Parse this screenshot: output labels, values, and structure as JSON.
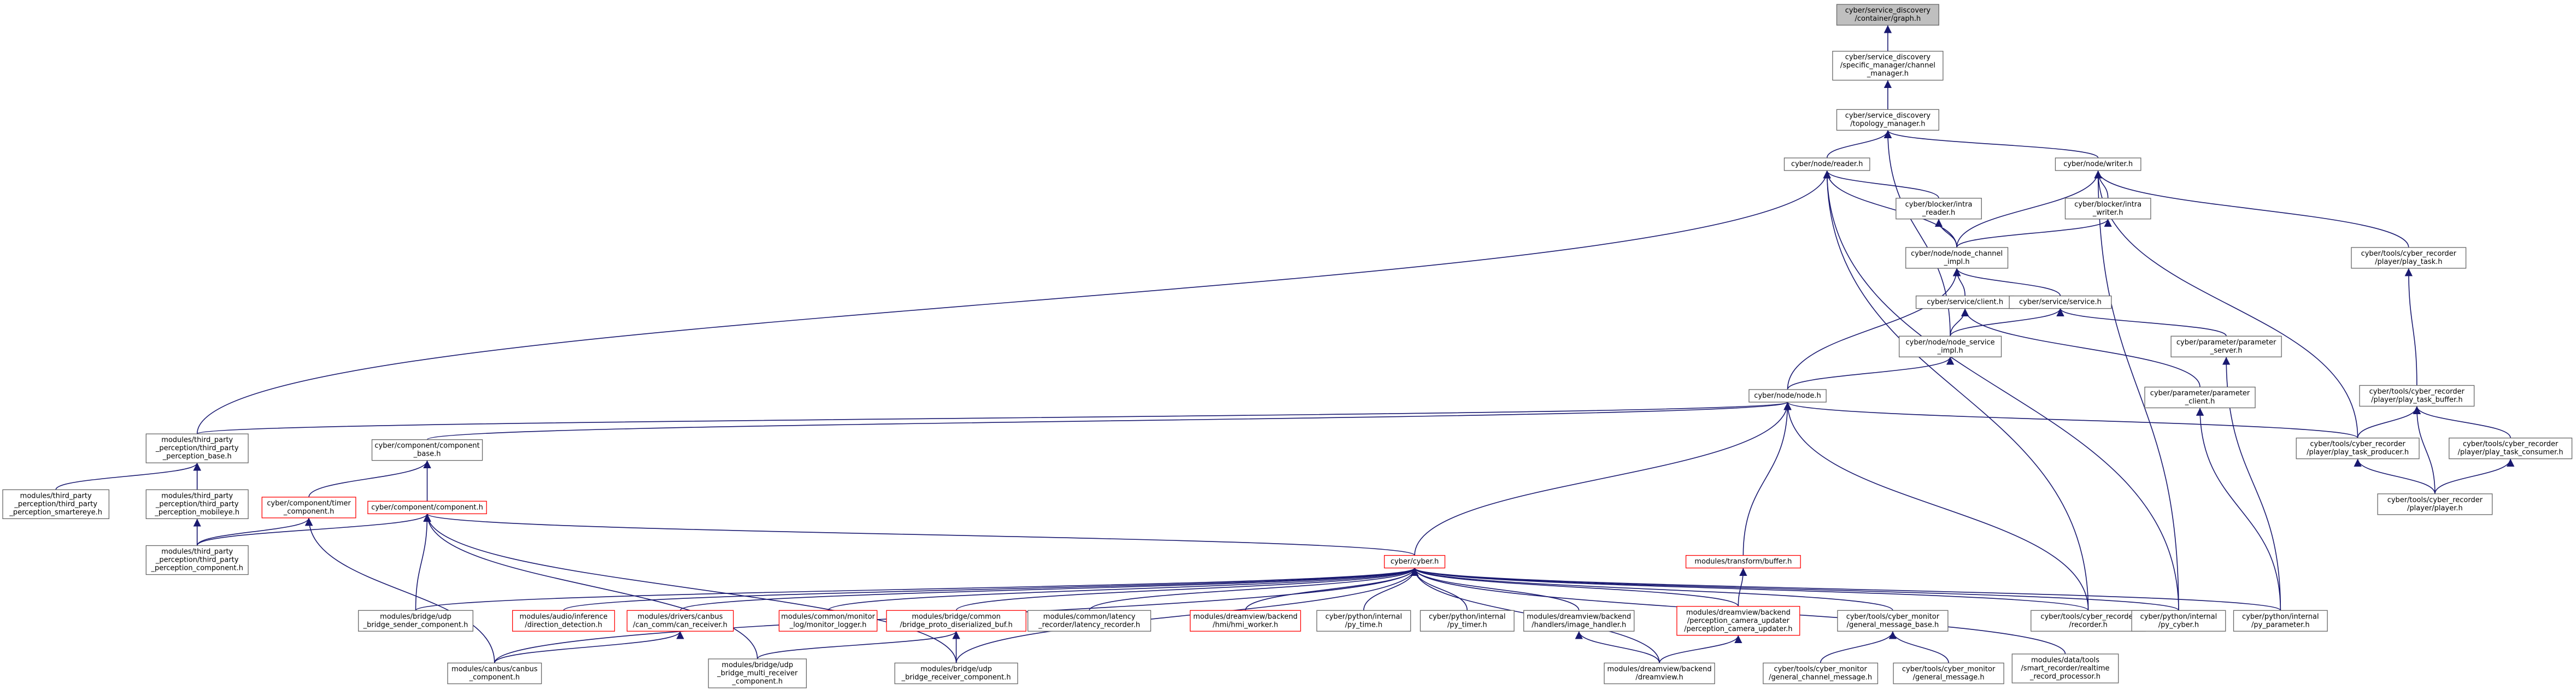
{
  "nodes": [
    {
      "lines": [
        "cyber/service_discovery",
        "/container/graph.h"
      ],
      "color": "#bfbfbf"
    },
    {
      "lines": [
        "cyber/service_discovery",
        "/specific_manager/channel",
        "_manager.h"
      ]
    },
    {
      "lines": [
        "cyber/service_discovery",
        "/topology_manager.h"
      ]
    },
    {
      "lines": [
        "cyber/node/reader.h"
      ]
    },
    {
      "lines": [
        "cyber/node/writer.h"
      ]
    },
    {
      "lines": [
        "cyber/blocker/intra",
        "_reader.h"
      ]
    },
    {
      "lines": [
        "cyber/blocker/intra",
        "_writer.h"
      ]
    },
    {
      "lines": [
        "cyber/tools/cyber_recorder",
        "/player/play_task.h"
      ]
    },
    {
      "lines": [
        "cyber/node/node_channel",
        "_impl.h"
      ]
    },
    {
      "lines": [
        "cyber/service/client.h"
      ]
    },
    {
      "lines": [
        "cyber/service/service.h"
      ]
    },
    {
      "lines": [
        "cyber/node/node_service",
        "_impl.h"
      ]
    },
    {
      "lines": [
        "cyber/parameter/parameter",
        "_server.h"
      ]
    },
    {
      "lines": [
        "cyber/node/node.h"
      ]
    },
    {
      "lines": [
        "cyber/parameter/parameter",
        "_client.h"
      ]
    },
    {
      "lines": [
        "cyber/tools/cyber_recorder",
        "/player/play_task_buffer.h"
      ]
    },
    {
      "lines": [
        "modules/third_party",
        "_perception/third_party",
        "_perception_base.h"
      ]
    },
    {
      "lines": [
        "cyber/component/component",
        "_base.h"
      ]
    },
    {
      "lines": [
        "cyber/tools/cyber_recorder",
        "/player/play_task_producer.h"
      ]
    },
    {
      "lines": [
        "cyber/tools/cyber_recorder",
        "/player/play_task_consumer.h"
      ]
    },
    {
      "lines": [
        "modules/third_party",
        "_perception/third_party",
        "_perception_smartereye.h"
      ]
    },
    {
      "lines": [
        "modules/third_party",
        "_perception/third_party",
        "_perception_mobileye.h"
      ]
    },
    {
      "lines": [
        "cyber/component/timer",
        "_component.h"
      ],
      "color": "red"
    },
    {
      "lines": [
        "cyber/component/component.h"
      ],
      "color": "red"
    },
    {
      "lines": [
        "cyber/tools/cyber_recorder",
        "/player/player.h"
      ]
    },
    {
      "lines": [
        "modules/third_party",
        "_perception/third_party",
        "_perception_component.h"
      ]
    },
    {
      "lines": [
        "modules/transform/buffer.h"
      ],
      "color": "red"
    },
    {
      "lines": [
        "cyber/cyber.h"
      ],
      "color": "red"
    },
    {
      "lines": [
        "modules/bridge/udp",
        "_bridge_sender_component.h"
      ]
    },
    {
      "lines": [
        "modules/audio/inference",
        "/direction_detection.h"
      ],
      "color": "red"
    },
    {
      "lines": [
        "modules/drivers/canbus",
        "/can_comm/can_receiver.h"
      ],
      "color": "red"
    },
    {
      "lines": [
        "modules/common/monitor",
        "_log/monitor_logger.h"
      ],
      "color": "red"
    },
    {
      "lines": [
        "modules/bridge/common",
        "/bridge_proto_diserialized_buf.h"
      ],
      "color": "red"
    },
    {
      "lines": [
        "modules/common/latency",
        "_recorder/latency_recorder.h"
      ]
    },
    {
      "lines": [
        "modules/dreamview/backend",
        "/hmi/hmi_worker.h"
      ],
      "color": "red"
    },
    {
      "lines": [
        "cyber/python/internal",
        "/py_time.h"
      ]
    },
    {
      "lines": [
        "cyber/python/internal",
        "/py_timer.h"
      ]
    },
    {
      "lines": [
        "modules/dreamview/backend",
        "/handlers/image_handler.h"
      ]
    },
    {
      "lines": [
        "modules/dreamview/backend",
        "/perception_camera_updater",
        "/perception_camera_updater.h"
      ],
      "color": "red"
    },
    {
      "lines": [
        "cyber/tools/cyber_monitor",
        "/general_message_base.h"
      ]
    },
    {
      "lines": [
        "cyber/tools/cyber_recorder",
        "/recorder.h"
      ]
    },
    {
      "lines": [
        "cyber/python/internal",
        "/py_cyber.h"
      ]
    },
    {
      "lines": [
        "cyber/python/internal",
        "/py_parameter.h"
      ]
    },
    {
      "lines": [
        "modules/data/tools",
        "/smart_recorder/realtime",
        "_record_processor.h"
      ]
    },
    {
      "lines": [
        "modules/canbus/canbus",
        "_component.h"
      ]
    },
    {
      "lines": [
        "modules/bridge/udp",
        "_bridge_multi_receiver",
        "_component.h"
      ]
    },
    {
      "lines": [
        "modules/bridge/udp",
        "_bridge_receiver_component.h"
      ]
    },
    {
      "lines": [
        "modules/dreamview/backend",
        "/dreamview.h"
      ]
    },
    {
      "lines": [
        "cyber/tools/cyber_monitor",
        "/general_channel_message.h"
      ]
    },
    {
      "lines": [
        "cyber/tools/cyber_monitor",
        "/general_message.h"
      ]
    }
  ]
}
